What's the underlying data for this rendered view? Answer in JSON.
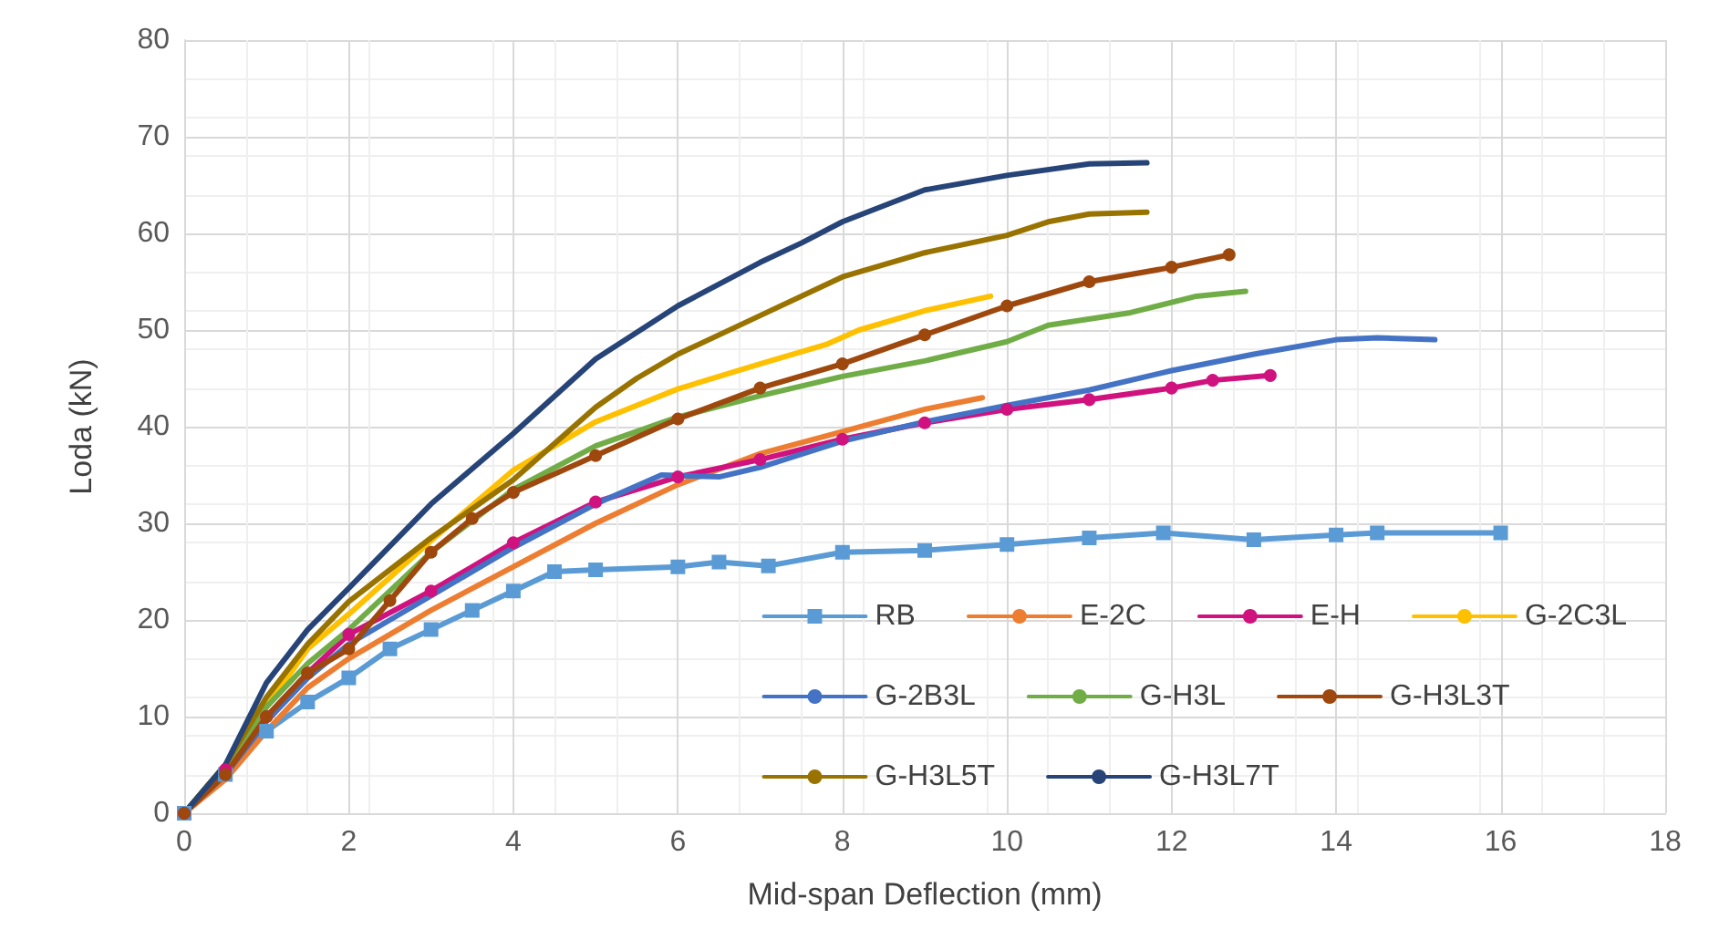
{
  "chart_data": {
    "type": "line",
    "xlabel": "Mid-span Deflection (mm)",
    "ylabel": "Loda (kN)",
    "xlim": [
      0,
      18
    ],
    "xticks": [
      0,
      2,
      4,
      6,
      8,
      10,
      12,
      14,
      16,
      18
    ],
    "ylim": [
      0,
      80
    ],
    "yticks": [
      0,
      10,
      20,
      30,
      40,
      50,
      60,
      70,
      80
    ],
    "grid": true,
    "legend": "bottom right",
    "line_style": "solid",
    "series": [
      {
        "name": "RB",
        "color": "#5b9bd5",
        "marker": "square",
        "x": [
          0,
          0.5,
          1,
          1.5,
          2,
          2.5,
          3,
          3.5,
          4,
          4.5,
          5,
          6,
          6.5,
          7.1,
          8,
          9,
          10,
          11,
          11.9,
          13,
          14,
          14.5,
          16
        ],
        "values": [
          0,
          4,
          8.5,
          11.5,
          14,
          17,
          19,
          21,
          23,
          25,
          25.2,
          25.5,
          26,
          25.6,
          27,
          27.2,
          27.8,
          28.5,
          29,
          28.3,
          28.8,
          29,
          29
        ]
      },
      {
        "name": "E-2C",
        "color": "#ed7d31",
        "marker": "none",
        "x": [
          0,
          0.5,
          1,
          1.5,
          2,
          3,
          4,
          5,
          6,
          7,
          8,
          9,
          9.7
        ],
        "values": [
          0,
          3.5,
          8.5,
          13,
          16,
          21,
          25.5,
          30,
          34,
          37.2,
          39.5,
          41.8,
          43
        ]
      },
      {
        "name": "E-H",
        "color": "#d0127f",
        "marker": "circle",
        "x": [
          0,
          0.5,
          1,
          1.5,
          2,
          3,
          4,
          5,
          6,
          7,
          8,
          9,
          10,
          11,
          12,
          12.5,
          13.2
        ],
        "values": [
          0,
          4.5,
          10,
          14.5,
          18.5,
          23,
          28,
          32.2,
          34.8,
          36.6,
          38.7,
          40.4,
          41.8,
          42.8,
          44,
          44.8,
          45.3
        ]
      },
      {
        "name": "G-2C3L",
        "color": "#ffc000",
        "marker": "none",
        "x": [
          0,
          0.5,
          1,
          1.5,
          2,
          3,
          4,
          4.5,
          5,
          6,
          7,
          7.8,
          8.2,
          9,
          9.8
        ],
        "values": [
          0,
          5,
          11,
          17,
          20.6,
          28.2,
          35.5,
          38,
          40.5,
          43.9,
          46.5,
          48.5,
          50,
          52,
          53.5
        ]
      },
      {
        "name": "G-2B3L",
        "color": "#4472c4",
        "marker": "none",
        "x": [
          0,
          0.5,
          1,
          1.5,
          2,
          3,
          4,
          5,
          5.8,
          6.5,
          7,
          8,
          9,
          10,
          11,
          12,
          13,
          14,
          14.5,
          15.2
        ],
        "values": [
          0,
          4,
          9.5,
          14,
          17.5,
          22.5,
          27.5,
          32,
          35,
          34.8,
          35.8,
          38.5,
          40.5,
          42.2,
          43.8,
          45.8,
          47.5,
          49,
          49.2,
          49
        ]
      },
      {
        "name": "G-H3L",
        "color": "#70ad47",
        "marker": "none",
        "x": [
          0,
          0.5,
          1,
          1.5,
          2,
          3,
          4,
          5,
          6,
          7,
          8,
          9,
          10,
          10.5,
          11.5,
          12.3,
          12.9
        ],
        "values": [
          0,
          5,
          11,
          15.5,
          19,
          27,
          33.5,
          38,
          41,
          43.2,
          45.2,
          46.8,
          48.8,
          50.5,
          51.8,
          53.5,
          54
        ]
      },
      {
        "name": "G-H3L3T",
        "color": "#9e480e",
        "marker": "circle",
        "x": [
          0,
          0.5,
          1,
          1.5,
          2,
          2.5,
          3,
          3.5,
          4,
          5,
          6,
          7,
          8,
          9,
          10,
          11,
          12,
          12.7
        ],
        "values": [
          0,
          4,
          10,
          14.5,
          17,
          22,
          27,
          30.5,
          33.2,
          37,
          40.8,
          44,
          46.5,
          49.5,
          52.5,
          55,
          56.5,
          57.8
        ]
      },
      {
        "name": "G-H3L5T",
        "color": "#997300",
        "marker": "none",
        "x": [
          0,
          0.5,
          1,
          1.5,
          2,
          3,
          4,
          5,
          5.5,
          6,
          7,
          8,
          9,
          10,
          10.5,
          11,
          11.7
        ],
        "values": [
          0,
          5,
          12,
          17.5,
          21.9,
          28.5,
          34.5,
          42,
          45,
          47.5,
          51.5,
          55.5,
          58,
          59.8,
          61.2,
          62,
          62.2
        ]
      },
      {
        "name": "G-H3L7T",
        "color": "#264478",
        "marker": "none",
        "x": [
          0,
          0.5,
          1,
          1.5,
          2,
          3,
          4,
          5,
          6,
          7,
          7.5,
          8,
          9,
          10,
          11,
          11.7
        ],
        "values": [
          0,
          5,
          13.5,
          19,
          23.3,
          32,
          39.3,
          47,
          52.5,
          57,
          59,
          61.2,
          64.5,
          66,
          67.2,
          67.3
        ]
      }
    ]
  }
}
